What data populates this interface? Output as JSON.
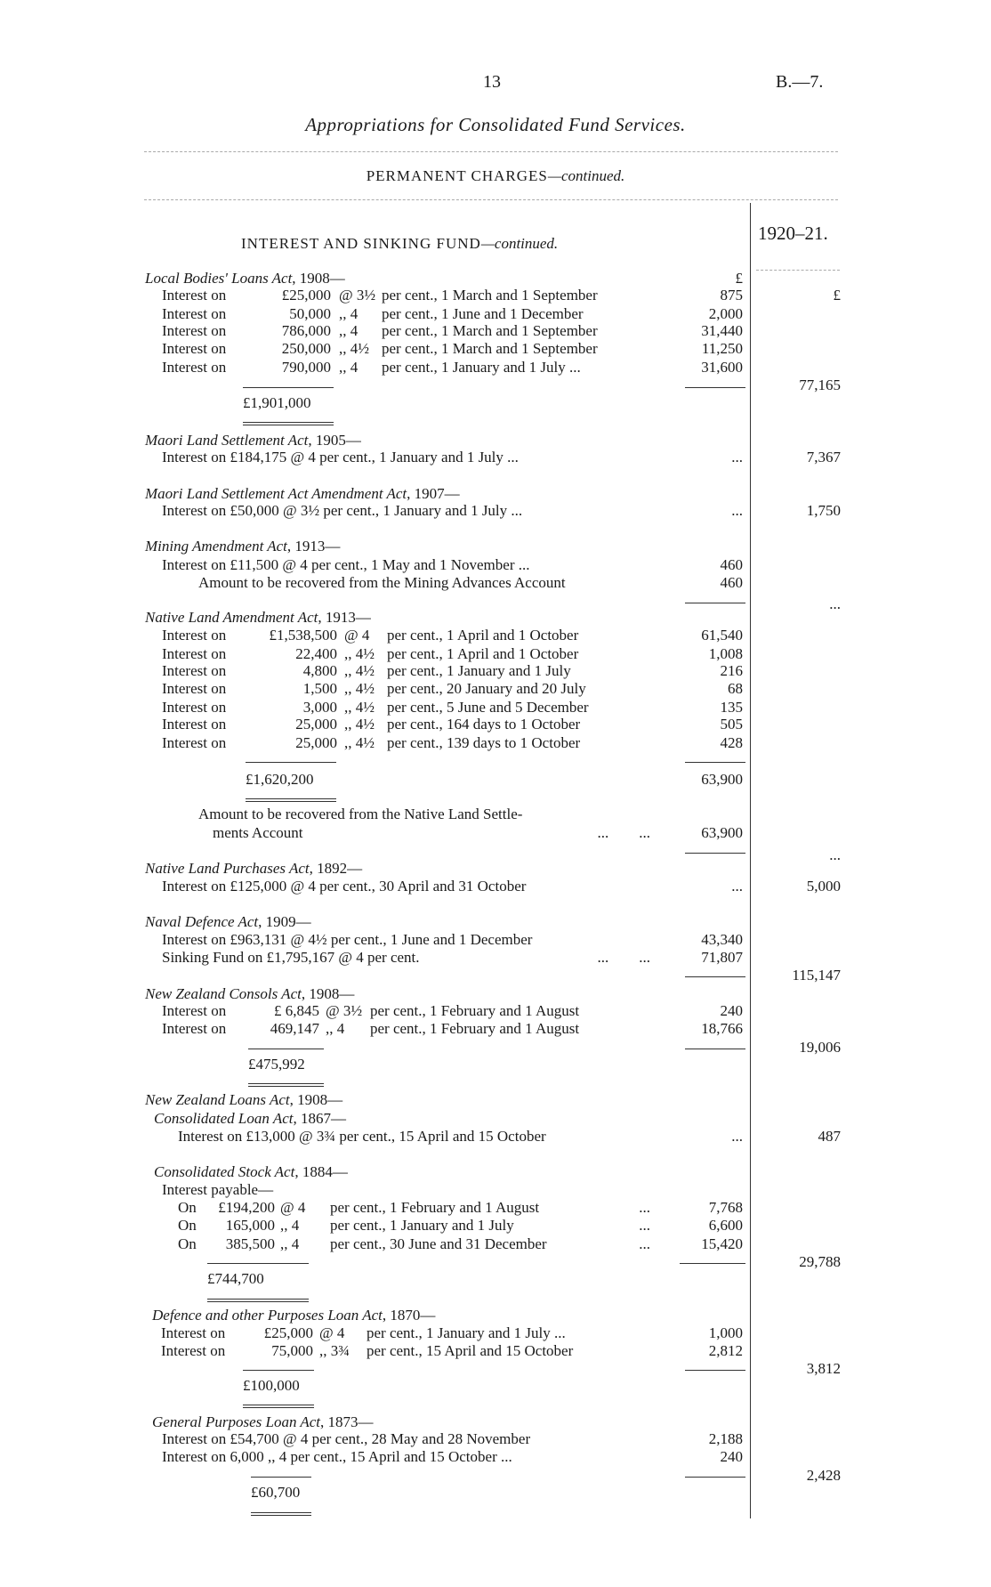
{
  "header": {
    "page_number": "13",
    "doc_ref": "B.—7.",
    "title": "Appropriations for Consolidated Fund Services.",
    "subtitle": "PERMANENT CHARGES",
    "subtitle_suffix": "—continued.",
    "section": "INTEREST AND SINKING FUND",
    "section_suffix": "—continued.",
    "year_column": "1920–21."
  },
  "lines": [
    {
      "type": "heading",
      "title": "Local Bodies' Loans Act",
      "suffix": ", 1908—",
      "amount": "£"
    },
    {
      "type": "item",
      "label": "Interest on",
      "principal": "£25,000",
      "rate": "@ 3½",
      "terms": "per cent., 1 March and 1 September",
      "amount": "875",
      "total": "£"
    },
    {
      "type": "item",
      "label": "Interest on",
      "principal": "50,000",
      "rate": ",, 4",
      "terms": "per cent., 1 June and 1 December",
      "amount": "2,000"
    },
    {
      "type": "item",
      "label": "Interest on",
      "principal": "786,000",
      "rate": ",, 4",
      "terms": "per cent., 1 March and 1 September",
      "amount": "31,440"
    },
    {
      "type": "item",
      "label": "Interest on",
      "principal": "250,000",
      "rate": ",, 4½",
      "terms": "per cent., 1 March and 1 September",
      "amount": "11,250"
    },
    {
      "type": "item",
      "label": "Interest on",
      "principal": "790,000",
      "rate": ",, 4",
      "terms": "per cent., 1 January and 1 July ...",
      "amount": "31,600"
    },
    {
      "type": "total",
      "total": "77,165"
    },
    {
      "type": "sub",
      "text": "£1,901,000"
    },
    {
      "type": "heading",
      "title": "Maori Land Settlement Act",
      "suffix": ", 1905—"
    },
    {
      "type": "text",
      "text": "Interest on £184,175 @ 4 per cent., 1 January and 1 July   ...",
      "amount": "...",
      "total": "7,367"
    },
    {
      "type": "heading",
      "title": "Maori Land Settlement Act Amendment Act",
      "suffix": ", 1907—"
    },
    {
      "type": "text",
      "text": "Interest on £50,000 @ 3½ per cent., 1 January and 1 July ...",
      "amount": "...",
      "total": "1,750"
    },
    {
      "type": "heading",
      "title": "Mining Amendment Act",
      "suffix": ", 1913—"
    },
    {
      "type": "text",
      "text": "Interest on £11,500 @ 4 per cent., 1 May and 1 November ...",
      "amount": "460"
    },
    {
      "type": "text",
      "text": "Amount to be recovered from the Mining Advances Account",
      "amount": "460"
    },
    {
      "type": "total",
      "total": "..."
    },
    {
      "type": "heading",
      "title": "Native Land Amendment Act",
      "suffix": ", 1913—"
    },
    {
      "type": "item",
      "label": "Interest on",
      "principal": "£1,538,500",
      "rate": "@ 4",
      "terms": "per cent., 1 April and 1 October",
      "amount": "61,540"
    },
    {
      "type": "item",
      "label": "Interest on",
      "principal": "22,400",
      "rate": ",, 4½",
      "terms": "per cent., 1 April and 1 October",
      "amount": "1,008"
    },
    {
      "type": "item",
      "label": "Interest on",
      "principal": "4,800",
      "rate": ",, 4½",
      "terms": "per cent., 1 January and 1 July",
      "amount": "216"
    },
    {
      "type": "item",
      "label": "Interest on",
      "principal": "1,500",
      "rate": ",, 4½",
      "terms": "per cent., 20 January and 20 July",
      "amount": "68"
    },
    {
      "type": "item",
      "label": "Interest on",
      "principal": "3,000",
      "rate": ",, 4½",
      "terms": "per cent., 5 June and 5 December",
      "amount": "135"
    },
    {
      "type": "item",
      "label": "Interest on",
      "principal": "25,000",
      "rate": ",, 4½",
      "terms": "per cent., 164 days to 1 October",
      "amount": "505"
    },
    {
      "type": "item",
      "label": "Interest on",
      "principal": "25,000",
      "rate": ",, 4½",
      "terms": "per cent., 139 days to 1 October",
      "amount": "428"
    },
    {
      "type": "sub",
      "text": "£1,620,200",
      "amount": "63,900"
    },
    {
      "type": "text",
      "text": "Amount to be recovered from the Native Land Settle-"
    },
    {
      "type": "text",
      "text": "ments Account",
      "dots": "...        ...",
      "amount": "63,900"
    },
    {
      "type": "total",
      "total": "..."
    },
    {
      "type": "heading",
      "title": "Native Land Purchases Act",
      "suffix": ", 1892—"
    },
    {
      "type": "text",
      "text": "Interest on £125,000 @ 4 per cent., 30 April and 31 October",
      "amount": "...",
      "total": "5,000"
    },
    {
      "type": "heading",
      "title": "Naval Defence Act",
      "suffix": ", 1909—"
    },
    {
      "type": "text",
      "text": "Interest on £963,131 @ 4½ per cent., 1 June and 1 December",
      "amount": "43,340"
    },
    {
      "type": "text",
      "text": "Sinking Fund on £1,795,167 @ 4 per cent.",
      "dots": "...        ...",
      "amount": "71,807"
    },
    {
      "type": "total",
      "total": "115,147"
    },
    {
      "type": "heading",
      "title": "New Zealand Consols Act",
      "suffix": ", 1908—"
    },
    {
      "type": "item",
      "label": "Interest on",
      "principal": "£   6,845",
      "rate": "@ 3½",
      "terms": "per cent., 1 February and 1 August",
      "amount": "240"
    },
    {
      "type": "item",
      "label": "Interest on",
      "principal": "469,147",
      "rate": ",, 4",
      "terms": "per cent., 1 February and 1 August",
      "amount": "18,766"
    },
    {
      "type": "total",
      "total": "19,006"
    },
    {
      "type": "sub",
      "text": "£475,992"
    },
    {
      "type": "heading",
      "title": "New Zealand Loans Act",
      "suffix": ", 1908—"
    },
    {
      "type": "heading",
      "title": "Consolidated Loan Act",
      "suffix": ", 1867—"
    },
    {
      "type": "text",
      "text": "Interest on £13,000 @ 3¾ per cent., 15 April and 15 October",
      "amount": "...",
      "total": "487"
    },
    {
      "type": "heading",
      "title": "Consolidated Stock Act",
      "suffix": ", 1884—"
    },
    {
      "type": "text",
      "text": "Interest payable—"
    },
    {
      "type": "item",
      "label": "On",
      "principal": "£194,200",
      "rate": "@ 4",
      "terms": "per cent., 1 February and 1 August",
      "dots": "...",
      "amount": "7,768"
    },
    {
      "type": "item",
      "label": "On",
      "principal": "165,000",
      "rate": ",, 4",
      "terms": "per cent., 1 January and 1 July",
      "dots": "...",
      "amount": "6,600"
    },
    {
      "type": "item",
      "label": "On",
      "principal": "385,500",
      "rate": ",, 4",
      "terms": "per cent., 30 June and 31 December",
      "dots": "...",
      "amount": "15,420"
    },
    {
      "type": "total",
      "total": "29,788"
    },
    {
      "type": "sub",
      "text": "£744,700"
    },
    {
      "type": "heading",
      "title": "Defence and other Purposes Loan Act",
      "suffix": ", 1870—"
    },
    {
      "type": "item",
      "label": "Interest on",
      "principal": "£25,000",
      "rate": "@ 4",
      "terms": "per cent., 1 January and 1 July ...",
      "amount": "1,000"
    },
    {
      "type": "item",
      "label": "Interest on",
      "principal": "75,000",
      "rate": ",, 3¾",
      "terms": "per cent., 15 April and 15 October",
      "amount": "2,812"
    },
    {
      "type": "total",
      "total": "3,812"
    },
    {
      "type": "sub",
      "text": "£100,000"
    },
    {
      "type": "heading",
      "title": "General Purposes Loan Act",
      "suffix": ", 1873—"
    },
    {
      "type": "text",
      "text": "Interest on £54,700 @ 4 per cent., 28 May and 28 November",
      "amount": "2,188"
    },
    {
      "type": "text",
      "text": "Interest on     6,000 ,, 4 per cent., 15 April and 15 October ...",
      "amount": "240"
    },
    {
      "type": "total",
      "total": "2,428"
    },
    {
      "type": "sub",
      "text": "£60,700"
    }
  ]
}
